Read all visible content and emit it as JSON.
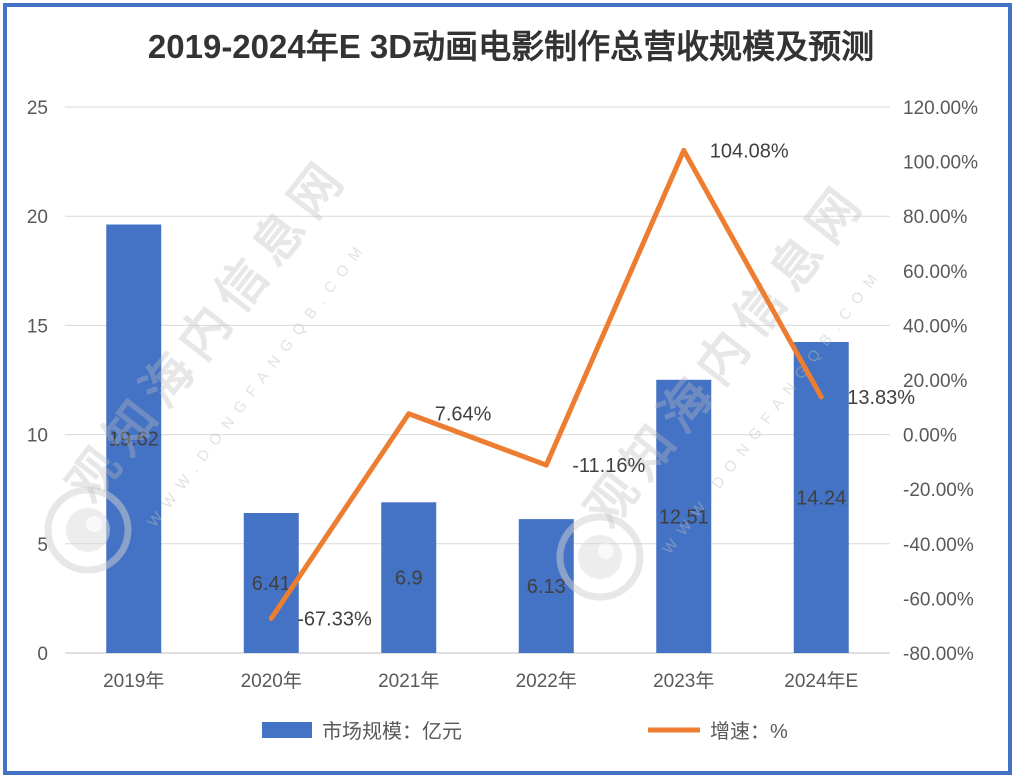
{
  "chart_data": {
    "type": "bar",
    "title": "2019-2024年E 3D动画电影制作总营收规模及预测",
    "categories": [
      "2019年",
      "2020年",
      "2021年",
      "2022年",
      "2023年",
      "2024年E"
    ],
    "series": [
      {
        "name": "市场规模：亿元",
        "type": "bar",
        "axis": "left",
        "color": "#4472C4",
        "values": [
          19.62,
          6.41,
          6.9,
          6.13,
          12.51,
          14.24
        ],
        "labels": [
          "19.62",
          "6.41",
          "6.9",
          "6.13",
          "12.51",
          "14.24"
        ]
      },
      {
        "name": "增速：%",
        "type": "line",
        "axis": "right",
        "color": "#ED7D31",
        "values": [
          null,
          -67.33,
          7.64,
          -11.16,
          104.08,
          13.83
        ],
        "labels": [
          null,
          "-67.33%",
          "7.64%",
          "-11.16%",
          "104.08%",
          "13.83%"
        ]
      }
    ],
    "y_left": {
      "min": 0,
      "max": 25,
      "step": 5,
      "ticks": [
        "0",
        "5",
        "10",
        "15",
        "20",
        "25"
      ]
    },
    "y_right": {
      "min": -80,
      "max": 120,
      "step": 20,
      "ticks": [
        "-80.00%",
        "-60.00%",
        "-40.00%",
        "-20.00%",
        "0.00%",
        "20.00%",
        "40.00%",
        "60.00%",
        "80.00%",
        "100.00%",
        "120.00%"
      ]
    },
    "grid": true,
    "legend": "bottom"
  },
  "frame": {
    "border_color": "#4472C4"
  },
  "watermark": {
    "site_name": "观知海内信息网",
    "url": "WWW.DONGFANGQB.COM"
  }
}
